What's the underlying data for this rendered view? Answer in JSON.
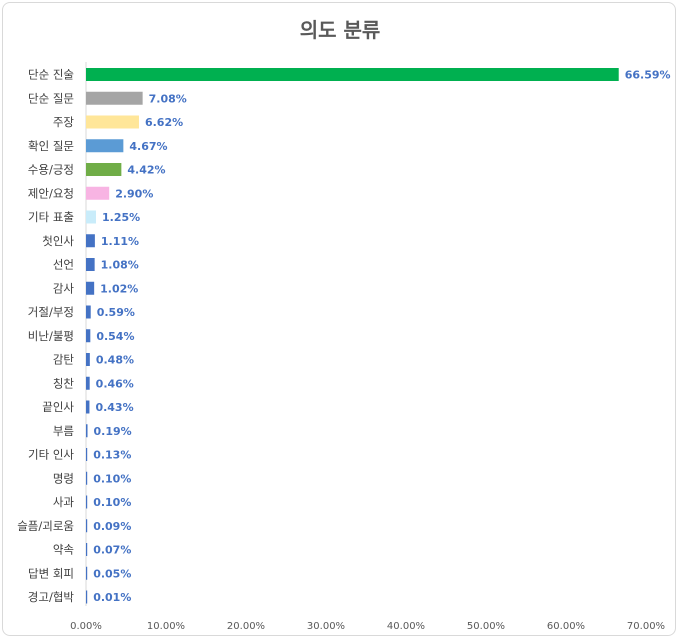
{
  "chart_data": {
    "type": "bar",
    "orientation": "horizontal",
    "title": "의도 분류",
    "categories": [
      "단순 진술",
      "단순 질문",
      "주장",
      "확인 질문",
      "수용/긍정",
      "제안/요청",
      "기타 표출",
      "첫인사",
      "선언",
      "감사",
      "거절/부정",
      "비난/불평",
      "감탄",
      "칭찬",
      "끝인사",
      "부름",
      "기타 인사",
      "명령",
      "사과",
      "슬픔/괴로움",
      "약속",
      "답변 회피",
      "경고/협박"
    ],
    "values": [
      66.59,
      7.08,
      6.62,
      4.67,
      4.42,
      2.9,
      1.25,
      1.11,
      1.08,
      1.02,
      0.59,
      0.54,
      0.48,
      0.46,
      0.43,
      0.19,
      0.13,
      0.1,
      0.1,
      0.09,
      0.07,
      0.05,
      0.01
    ],
    "data_labels": [
      "66.59%",
      "7.08%",
      "6.62%",
      "4.67%",
      "4.42%",
      "2.90%",
      "1.25%",
      "1.11%",
      "1.08%",
      "1.02%",
      "0.59%",
      "0.54%",
      "0.48%",
      "0.46%",
      "0.43%",
      "0.19%",
      "0.13%",
      "0.10%",
      "0.10%",
      "0.09%",
      "0.07%",
      "0.05%",
      "0.01%"
    ],
    "bar_colors": [
      "#00b050",
      "#a5a5a5",
      "#ffe699",
      "#5b9bd5",
      "#70ad47",
      "#f8b4e3",
      "#c9ecfa",
      "#4472c4",
      "#4472c4",
      "#4472c4",
      "#4472c4",
      "#4472c4",
      "#4472c4",
      "#4472c4",
      "#4472c4",
      "#4472c4",
      "#4472c4",
      "#4472c4",
      "#4472c4",
      "#4472c4",
      "#4472c4",
      "#4472c4",
      "#4472c4"
    ],
    "xlim": [
      0,
      70
    ],
    "xticks": [
      0,
      10,
      20,
      30,
      40,
      50,
      60,
      70
    ],
    "xtick_labels": [
      "0.00%",
      "10.00%",
      "20.00%",
      "30.00%",
      "40.00%",
      "50.00%",
      "60.00%",
      "70.00%"
    ],
    "grid": false,
    "legend": "none",
    "label_color": "#4472c4"
  }
}
